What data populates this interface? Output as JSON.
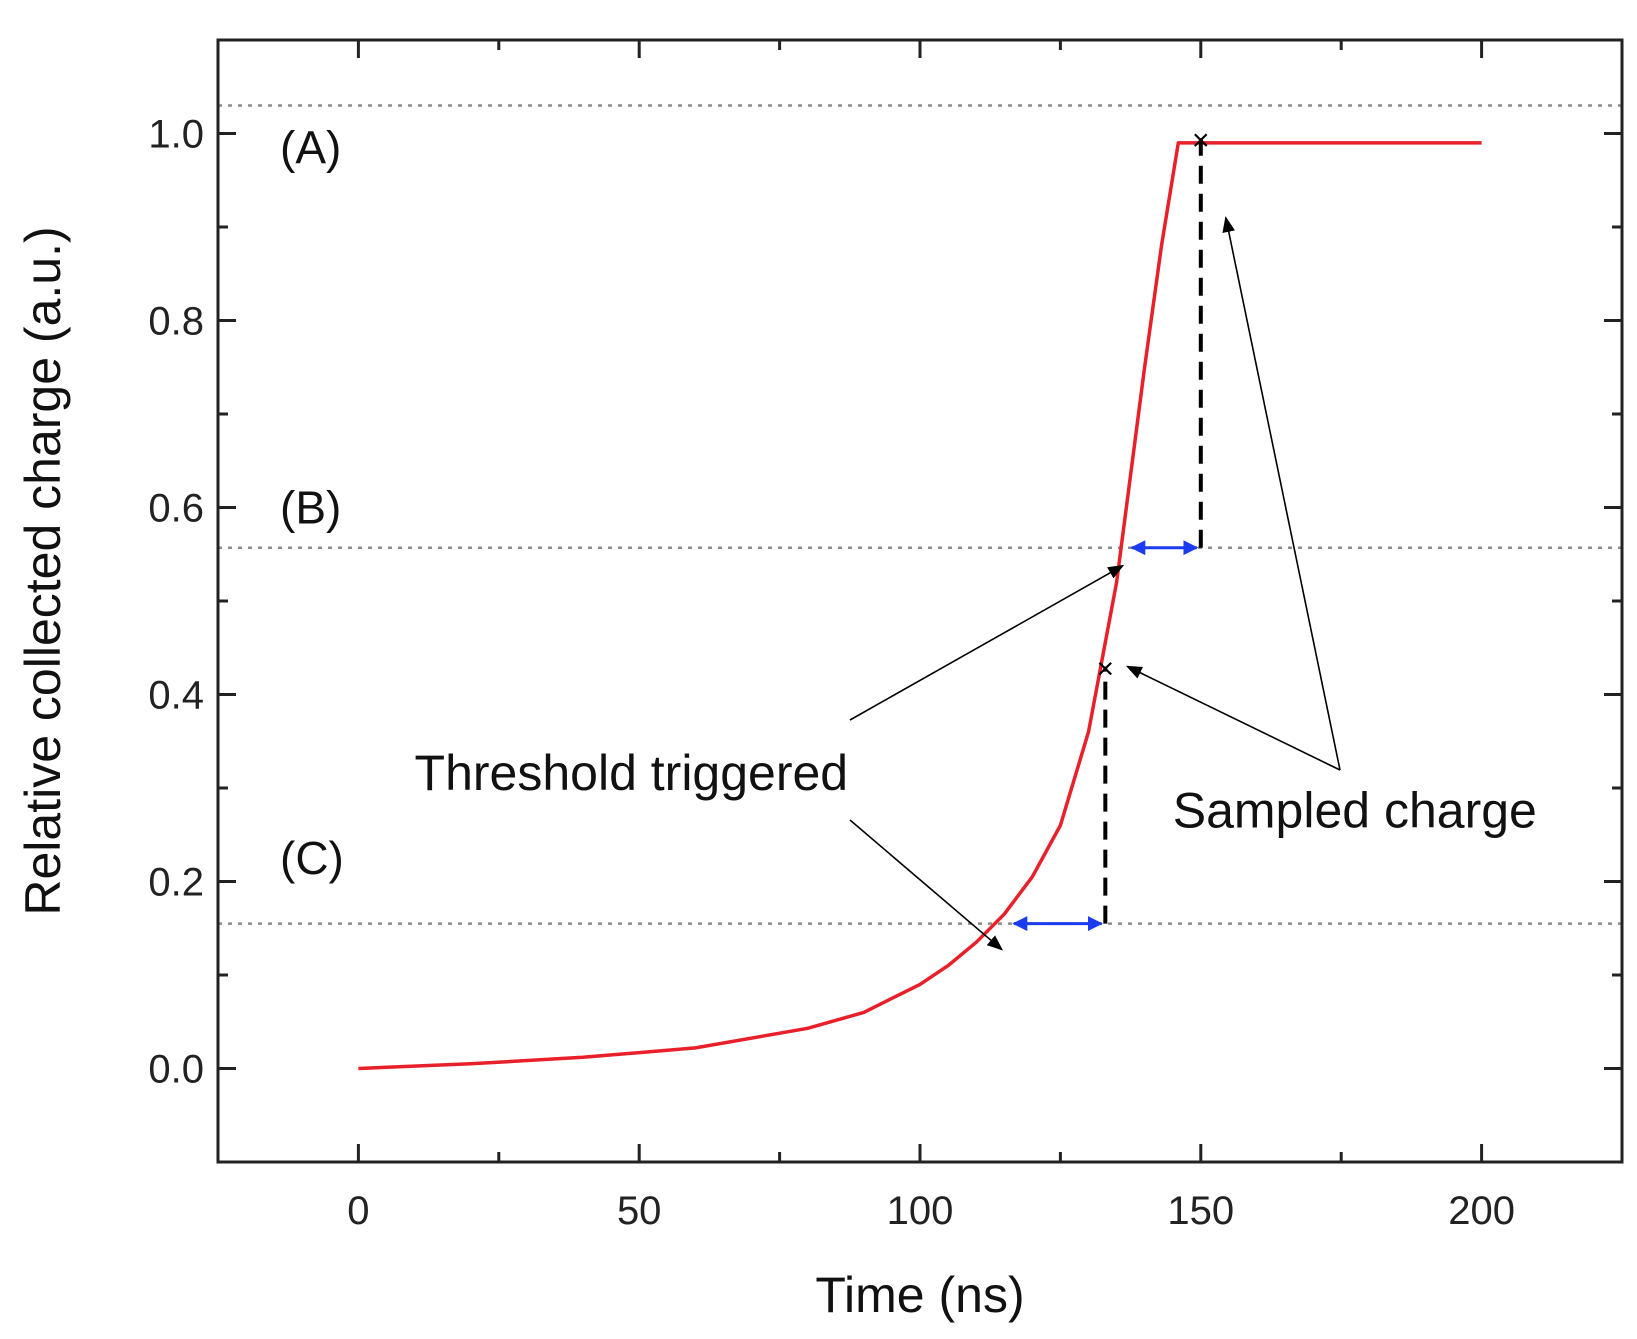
{
  "chart_data": {
    "type": "line",
    "xlabel": "Time (ns)",
    "ylabel": "Relative collected charge (a.u.)",
    "xlim": [
      -25,
      225
    ],
    "ylim": [
      -0.1,
      1.1
    ],
    "x_ticks": [
      "0",
      "50",
      "100",
      "150",
      "200"
    ],
    "x_tick_values": [
      0,
      50,
      100,
      150,
      200
    ],
    "y_ticks": [
      "0.0",
      "0.2",
      "0.4",
      "0.6",
      "0.8",
      "1.0"
    ],
    "y_tick_values": [
      0.0,
      0.2,
      0.4,
      0.6,
      0.8,
      1.0
    ],
    "grid": false,
    "series": [
      {
        "color": "#e8202a",
        "x": [
          0,
          20,
          40,
          60,
          80,
          90,
          100,
          105,
          110,
          115,
          120,
          125,
          130,
          135,
          140,
          143,
          146,
          150,
          175,
          200
        ],
        "y": [
          0.0,
          0.005,
          0.012,
          0.022,
          0.043,
          0.06,
          0.09,
          0.11,
          0.135,
          0.165,
          0.205,
          0.26,
          0.36,
          0.52,
          0.75,
          0.88,
          0.99,
          0.99,
          0.99,
          0.99
        ]
      }
    ],
    "threshold_levels": [
      {
        "label": "(A)",
        "y": 1.03
      },
      {
        "label": "(B)",
        "y": 0.557
      },
      {
        "label": "(C)",
        "y": 0.155
      }
    ],
    "level_label_y": {
      "(A)": 0.985,
      "(B)": 0.6,
      "(C)": 0.225
    },
    "triggers": [
      {
        "level": "(C)",
        "x_start": 116,
        "x_end": 133,
        "y": 0.155,
        "sample_y": 0.43
      },
      {
        "level": "(B)",
        "x_start": 137,
        "x_end": 150,
        "y": 0.557,
        "sample_y": 0.995
      }
    ],
    "annotations": [
      {
        "text": "Threshold triggered",
        "x": 10,
        "y": 0.3
      },
      {
        "text": "Sampled charge",
        "x": 145,
        "y": 0.26
      }
    ],
    "colors": {
      "curve": "#e8202a",
      "arrow": "#1a3bf0",
      "dashed": "#000000",
      "threshold": "#8c8c8c"
    }
  }
}
